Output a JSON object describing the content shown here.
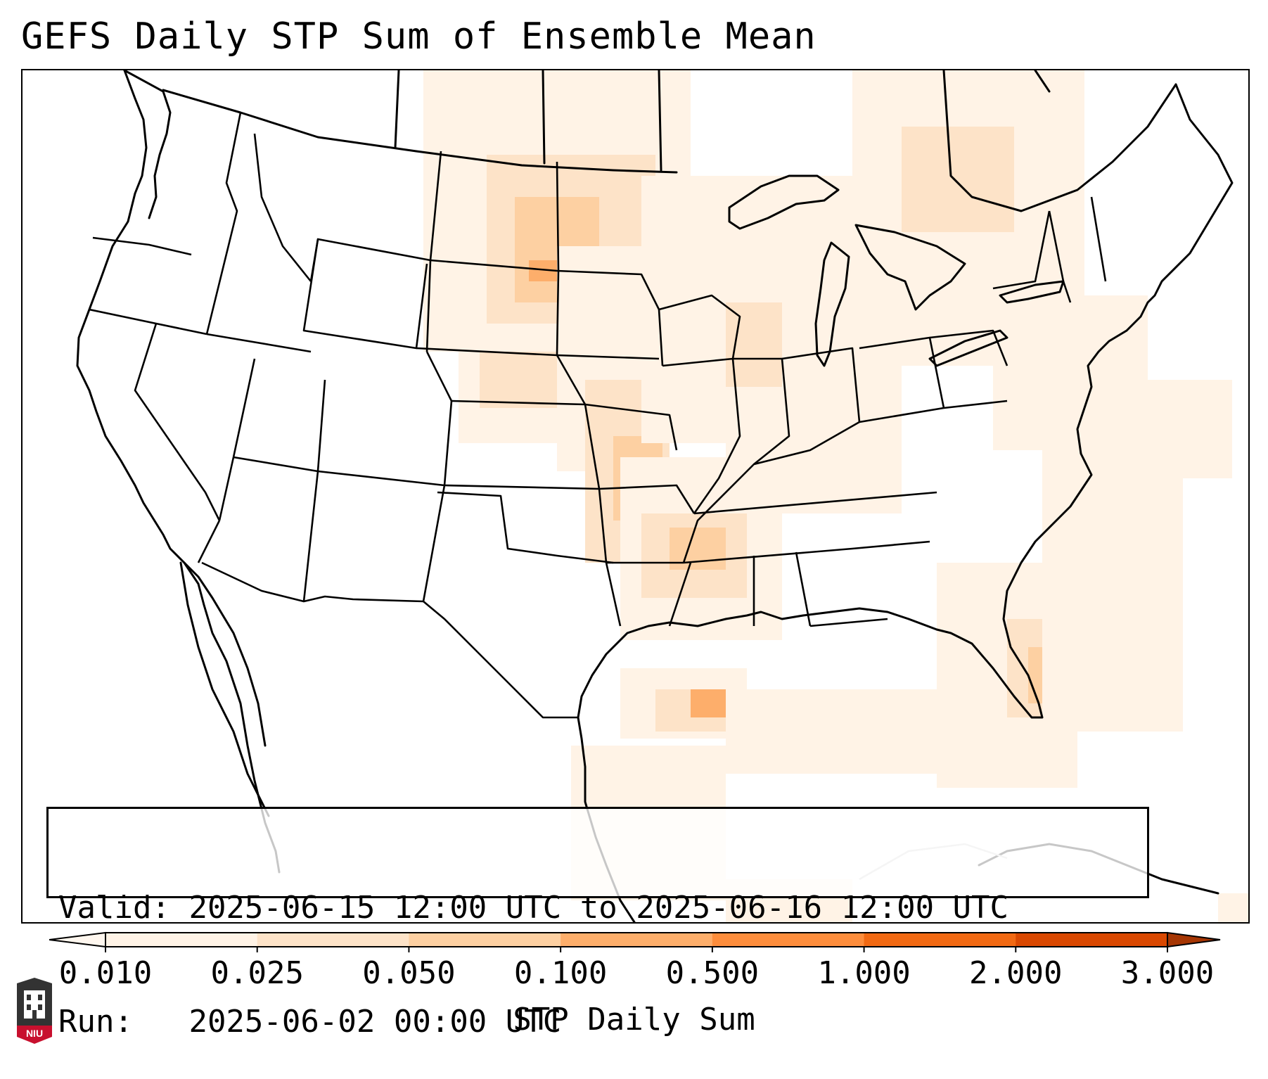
{
  "title": "GEFS Daily STP Sum of Ensemble Mean",
  "info_box": {
    "valid_label": "Valid:",
    "valid_value": "2025-06-15 12:00 UTC to 2025-06-16 12:00 UTC",
    "run_label": "Run:",
    "run_value": "2025-06-02 00:00 UTC"
  },
  "colorbar": {
    "label": "STP Daily Sum",
    "ticks": [
      "0.010",
      "0.025",
      "0.050",
      "0.100",
      "0.500",
      "1.000",
      "2.000",
      "3.000"
    ],
    "colors": [
      "#fff3e6",
      "#fde3c8",
      "#fdd0a2",
      "#fdae6b",
      "#fd8d3c",
      "#f16913",
      "#d94801"
    ],
    "extend": "both"
  },
  "logo": {
    "text": "NIU",
    "color": "#c8102e"
  },
  "shading": {
    "light": "#fff3e6",
    "medium": "#fde3c8",
    "strong": "#fdd0a2",
    "peak": "#fdae6b"
  }
}
